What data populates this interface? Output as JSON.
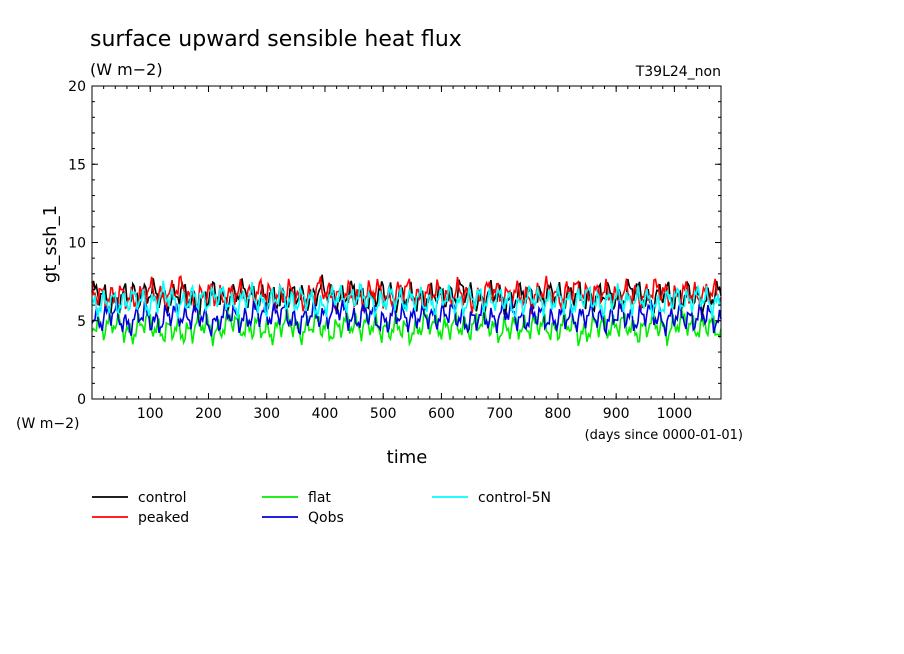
{
  "chart_data": {
    "type": "line",
    "title": "surface upward sensible heat flux",
    "subtitle": "(W m−2)",
    "run_label": "T39L24_non",
    "ylabel": "gt_ssh_1",
    "y_unit_label": "(W m−2)",
    "xlabel": "time",
    "x_unit_label": "(days since 0000-01-01)",
    "xlim": [
      0,
      1080
    ],
    "ylim": [
      0,
      20
    ],
    "x_ticks": [
      100,
      200,
      300,
      400,
      500,
      600,
      700,
      800,
      900,
      1000
    ],
    "y_ticks": [
      0,
      5,
      10,
      15,
      20
    ],
    "x_tick_labels": [
      "100",
      "200",
      "300",
      "400",
      "500",
      "600",
      "700",
      "800",
      "900",
      "1000"
    ],
    "y_tick_labels": [
      "0",
      "5",
      "10",
      "15",
      "20"
    ],
    "grid": false,
    "legend_position": "bottom",
    "x": [
      0,
      30,
      60,
      90,
      120,
      150,
      180,
      210,
      240,
      270,
      300,
      330,
      360,
      390,
      420,
      450,
      480,
      510,
      540,
      570,
      600,
      630,
      660,
      690,
      720,
      750,
      780,
      810,
      840,
      870,
      900,
      930,
      960,
      990,
      1020,
      1050,
      1080
    ],
    "series": [
      {
        "name": "control",
        "color": "#000000",
        "values": [
          6.8,
          6.3,
          6.5,
          6.9,
          6.4,
          6.7,
          6.2,
          6.6,
          6.5,
          6.8,
          6.3,
          6.6,
          6.4,
          6.9,
          6.5,
          6.7,
          6.4,
          6.8,
          6.3,
          6.6,
          6.5,
          6.9,
          6.4,
          6.6,
          6.3,
          6.7,
          6.5,
          6.8,
          6.4,
          6.6,
          6.5,
          6.9,
          6.3,
          6.7,
          6.5,
          6.4,
          6.6
        ]
      },
      {
        "name": "peaked",
        "color": "#ff0000",
        "values": [
          6.5,
          6.7,
          6.3,
          6.8,
          6.6,
          7.0,
          6.4,
          6.7,
          6.5,
          6.9,
          6.6,
          6.8,
          6.4,
          6.9,
          6.7,
          6.5,
          6.8,
          6.6,
          6.9,
          6.5,
          6.8,
          6.7,
          6.4,
          6.9,
          6.6,
          6.5,
          6.8,
          6.7,
          6.9,
          6.6,
          6.8,
          6.5,
          6.9,
          6.7,
          6.6,
          6.8,
          6.5
        ]
      },
      {
        "name": "flat",
        "color": "#00ee00",
        "values": [
          4.6,
          4.9,
          4.3,
          4.8,
          4.5,
          4.2,
          4.7,
          4.4,
          4.9,
          4.6,
          4.3,
          4.8,
          4.5,
          4.7,
          4.4,
          4.9,
          4.5,
          4.6,
          4.3,
          4.8,
          4.7,
          4.5,
          4.9,
          4.6,
          4.4,
          4.8,
          4.5,
          4.7,
          4.3,
          4.6,
          4.8,
          4.4,
          4.7,
          4.5,
          4.9,
          4.6,
          4.5
        ]
      },
      {
        "name": "Qobs",
        "color": "#0000dd",
        "values": [
          5.1,
          5.4,
          4.9,
          5.3,
          5.0,
          5.5,
          5.2,
          4.9,
          5.4,
          5.1,
          5.6,
          5.3,
          5.0,
          5.4,
          5.6,
          5.2,
          5.3,
          5.0,
          5.4,
          5.1,
          5.5,
          5.2,
          5.0,
          5.3,
          5.4,
          5.1,
          5.3,
          5.0,
          5.4,
          5.1,
          5.3,
          5.2,
          5.4,
          5.0,
          5.3,
          5.2,
          5.1
        ]
      },
      {
        "name": "control-5N",
        "color": "#00ffff",
        "values": [
          6.2,
          6.0,
          6.4,
          6.1,
          6.5,
          6.2,
          6.3,
          6.6,
          6.1,
          6.4,
          6.2,
          6.5,
          6.3,
          6.0,
          6.4,
          6.6,
          6.2,
          6.3,
          6.5,
          6.1,
          6.4,
          6.2,
          6.3,
          6.5,
          6.0,
          6.3,
          6.4,
          6.1,
          6.5,
          6.2,
          6.3,
          6.4,
          6.1,
          6.2,
          6.5,
          6.3,
          6.2
        ]
      }
    ]
  }
}
